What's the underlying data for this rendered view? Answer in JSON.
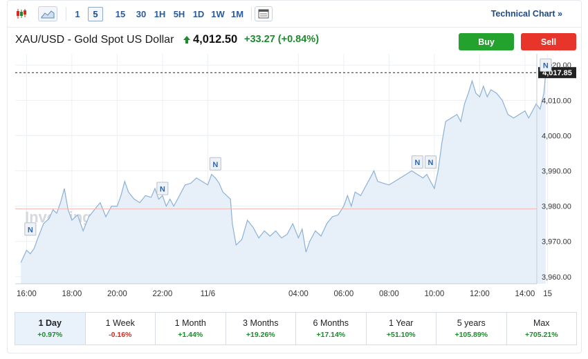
{
  "toolbar": {
    "icons": [
      "candlestick-icon",
      "area-chart-icon"
    ],
    "timeframes": [
      "1",
      "5",
      "15",
      "30",
      "1H",
      "5H",
      "1D",
      "1W",
      "1M"
    ],
    "active_timeframe": "5",
    "calendar_icon": "calendar-icon",
    "technical_link": "Technical Chart »"
  },
  "header": {
    "symbol": "XAU/USD - Gold Spot US Dollar",
    "price": "4,012.50",
    "change": "+33.27 (+0.84%)",
    "trend": "up",
    "buy_label": "Buy",
    "sell_label": "Sell"
  },
  "watermark": "Investing.com",
  "colors": {
    "up": "#1e8a2e",
    "down": "#d62a20",
    "line": "#8bb1d6",
    "fill": "#e7eff8",
    "buy": "#23a32e",
    "sell": "#e8352b",
    "ref_line": "#f2b8b4"
  },
  "chart_data": {
    "type": "area",
    "ylim": [
      3958,
      4022
    ],
    "y_ticks": [
      "3,960.00",
      "3,970.00",
      "3,980.00",
      "3,990.00",
      "4,000.00",
      "4,010.00",
      "4,020.00"
    ],
    "x_ticks": [
      "16:00",
      "18:00",
      "20:00",
      "22:00",
      "11/6",
      "04:00",
      "06:00",
      "08:00",
      "10:00",
      "12:00",
      "14:00",
      "15"
    ],
    "last_price_label": "4,017.85",
    "last_price": 4017.85,
    "prev_close": 3979.2,
    "news_markers": [
      "N",
      "N",
      "N",
      "N",
      "N",
      "N"
    ],
    "series": [
      {
        "points": [
          [
            "15:45",
            3964.0
          ],
          [
            "16:00",
            3967.5
          ],
          [
            "16:10",
            3966.5
          ],
          [
            "16:20",
            3968.0
          ],
          [
            "16:30",
            3971.0
          ],
          [
            "16:45",
            3975.0
          ],
          [
            "17:00",
            3976.5
          ],
          [
            "17:10",
            3979.0
          ],
          [
            "17:20",
            3978.0
          ],
          [
            "17:30",
            3981.0
          ],
          [
            "17:40",
            3985.0
          ],
          [
            "17:50",
            3979.0
          ],
          [
            "18:00",
            3976.0
          ],
          [
            "18:15",
            3977.5
          ],
          [
            "18:30",
            3973.0
          ],
          [
            "18:45",
            3977.0
          ],
          [
            "19:00",
            3979.0
          ],
          [
            "19:15",
            3981.0
          ],
          [
            "19:30",
            3977.0
          ],
          [
            "19:45",
            3980.0
          ],
          [
            "20:00",
            3980.0
          ],
          [
            "20:10",
            3983.0
          ],
          [
            "20:20",
            3987.0
          ],
          [
            "20:30",
            3984.0
          ],
          [
            "20:45",
            3982.0
          ],
          [
            "21:00",
            3981.0
          ],
          [
            "21:15",
            3983.0
          ],
          [
            "21:30",
            3982.5
          ],
          [
            "21:40",
            3985.0
          ],
          [
            "21:50",
            3982.0
          ],
          [
            "22:00",
            3983.0
          ],
          [
            "22:10",
            3980.0
          ],
          [
            "22:20",
            3982.0
          ],
          [
            "22:30",
            3980.0
          ],
          [
            "22:45",
            3983.0
          ],
          [
            "23:00",
            3986.0
          ],
          [
            "23:15",
            3986.5
          ],
          [
            "23:30",
            3988.0
          ],
          [
            "23:45",
            3987.0
          ],
          [
            "00:00",
            3986.0
          ],
          [
            "00:10",
            3989.0
          ],
          [
            "00:20",
            3988.0
          ],
          [
            "00:30",
            3986.5
          ],
          [
            "00:40",
            3984.0
          ],
          [
            "00:50",
            3983.0
          ],
          [
            "01:00",
            3982.0
          ],
          [
            "01:05",
            3975.0
          ],
          [
            "01:15",
            3969.0
          ],
          [
            "01:30",
            3970.5
          ],
          [
            "01:45",
            3976.0
          ],
          [
            "02:00",
            3974.0
          ],
          [
            "02:15",
            3971.0
          ],
          [
            "02:30",
            3973.0
          ],
          [
            "02:45",
            3971.5
          ],
          [
            "03:00",
            3973.0
          ],
          [
            "03:15",
            3971.0
          ],
          [
            "03:30",
            3972.0
          ],
          [
            "03:45",
            3975.0
          ],
          [
            "04:00",
            3971.0
          ],
          [
            "04:10",
            3973.5
          ],
          [
            "04:20",
            3967.0
          ],
          [
            "04:30",
            3970.0
          ],
          [
            "04:45",
            3973.0
          ],
          [
            "05:00",
            3971.5
          ],
          [
            "05:15",
            3975.0
          ],
          [
            "05:30",
            3977.0
          ],
          [
            "05:45",
            3977.5
          ],
          [
            "06:00",
            3980.0
          ],
          [
            "06:10",
            3983.0
          ],
          [
            "06:20",
            3980.0
          ],
          [
            "06:30",
            3984.0
          ],
          [
            "06:45",
            3983.0
          ],
          [
            "07:00",
            3986.0
          ],
          [
            "07:10",
            3988.0
          ],
          [
            "07:20",
            3990.0
          ],
          [
            "07:30",
            3987.0
          ],
          [
            "07:45",
            3986.5
          ],
          [
            "08:00",
            3986.0
          ],
          [
            "08:15",
            3987.0
          ],
          [
            "08:30",
            3988.0
          ],
          [
            "08:45",
            3989.0
          ],
          [
            "09:00",
            3990.0
          ],
          [
            "09:15",
            3989.0
          ],
          [
            "09:30",
            3988.0
          ],
          [
            "09:40",
            3989.0
          ],
          [
            "09:50",
            3987.0
          ],
          [
            "10:00",
            3985.0
          ],
          [
            "10:10",
            3990.0
          ],
          [
            "10:20",
            3998.0
          ],
          [
            "10:30",
            4004.0
          ],
          [
            "10:45",
            4005.0
          ],
          [
            "11:00",
            4006.0
          ],
          [
            "11:10",
            4004.0
          ],
          [
            "11:20",
            4009.0
          ],
          [
            "11:30",
            4012.0
          ],
          [
            "11:40",
            4015.5
          ],
          [
            "11:50",
            4012.0
          ],
          [
            "12:00",
            4011.0
          ],
          [
            "12:10",
            4014.0
          ],
          [
            "12:20",
            4011.0
          ],
          [
            "12:30",
            4013.0
          ],
          [
            "12:45",
            4012.0
          ],
          [
            "13:00",
            4010.0
          ],
          [
            "13:15",
            4006.0
          ],
          [
            "13:30",
            4005.0
          ],
          [
            "13:45",
            4006.0
          ],
          [
            "14:00",
            4007.0
          ],
          [
            "14:10",
            4005.0
          ],
          [
            "14:20",
            4007.0
          ],
          [
            "14:30",
            4009.0
          ],
          [
            "14:40",
            4007.5
          ],
          [
            "14:50",
            4012.0
          ],
          [
            "14:55",
            4017.85
          ]
        ]
      }
    ]
  },
  "periods": [
    {
      "label": "1 Day",
      "value": "+0.97%",
      "dir": "pos",
      "active": true
    },
    {
      "label": "1 Week",
      "value": "-0.16%",
      "dir": "neg",
      "active": false
    },
    {
      "label": "1 Month",
      "value": "+1.44%",
      "dir": "pos",
      "active": false
    },
    {
      "label": "3 Months",
      "value": "+19.26%",
      "dir": "pos",
      "active": false
    },
    {
      "label": "6 Months",
      "value": "+17.14%",
      "dir": "pos",
      "active": false
    },
    {
      "label": "1 Year",
      "value": "+51.10%",
      "dir": "pos",
      "active": false
    },
    {
      "label": "5 years",
      "value": "+105.89%",
      "dir": "pos",
      "active": false
    },
    {
      "label": "Max",
      "value": "+705.21%",
      "dir": "pos",
      "active": false
    }
  ]
}
